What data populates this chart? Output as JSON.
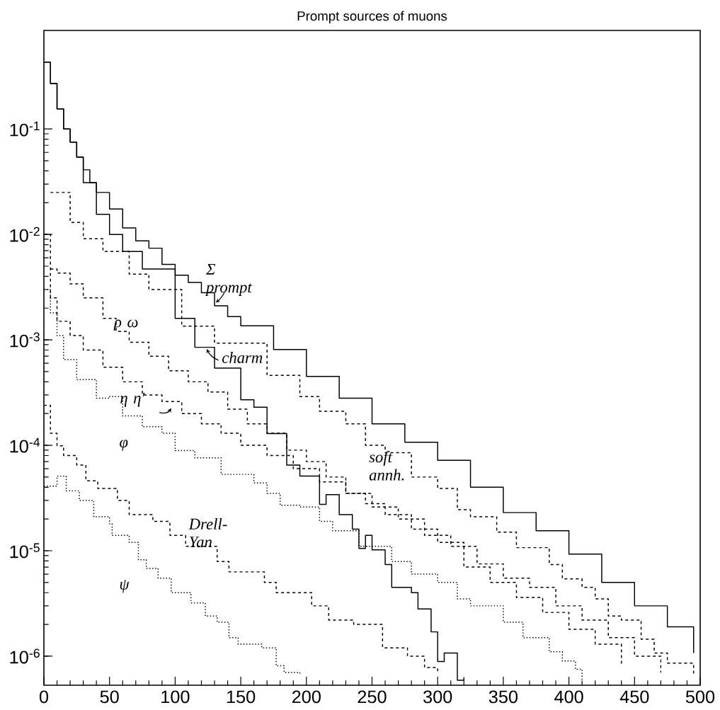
{
  "chart_data": {
    "type": "step",
    "title": "Prompt sources of muons",
    "log": true,
    "xlim": [
      0,
      500
    ],
    "ylim": [
      5.3e-07,
      0.86
    ],
    "xticks": [
      0,
      50,
      100,
      150,
      200,
      250,
      300,
      350,
      400,
      450,
      500
    ],
    "yticks": [
      {
        "value": 1e-06,
        "label": "10$^{-6}$"
      },
      {
        "value": 1e-05,
        "label": "10$^{-5}$"
      },
      {
        "value": 0.0001,
        "label": "10$^{-4}$"
      },
      {
        "value": 0.001,
        "label": "10$^{-3}$"
      },
      {
        "value": 0.01,
        "label": "10$^{-2}$"
      },
      {
        "value": 0.1,
        "label": "10$^{-1}$"
      }
    ],
    "series": [
      {
        "name": "Σ prompt",
        "color": "#000000",
        "line_style": "solid",
        "x": [
          0,
          5,
          10,
          15,
          20,
          25,
          30,
          35,
          40,
          50,
          60,
          70,
          80,
          90,
          100,
          110,
          120,
          130,
          140,
          150,
          175,
          200,
          225,
          250,
          275,
          300,
          325,
          350,
          375,
          400,
          425,
          450,
          475,
          495
        ],
        "values": [
          0.43,
          0.27,
          0.155,
          0.1,
          0.075,
          0.054,
          0.041,
          0.031,
          0.025,
          0.0174,
          0.0115,
          0.0087,
          0.0074,
          0.0052,
          0.0041,
          0.0035,
          0.0028,
          0.0021,
          0.00166,
          0.00136,
          0.00081,
          0.00045,
          0.00028,
          0.00016,
          0.000107,
          7.2e-05,
          4e-05,
          2.3e-05,
          1.55e-05,
          9.3e-06,
          5e-06,
          3e-06,
          1.9e-06,
          1.07e-06
        ]
      },
      {
        "name": "charm",
        "color": "#000000",
        "line_style": "solid",
        "x": [
          0,
          5,
          10,
          15,
          20,
          25,
          30,
          40,
          50,
          60,
          75,
          100,
          115,
          130,
          150,
          160,
          170,
          185,
          195,
          210,
          215,
          225,
          235,
          240,
          245,
          250,
          260,
          265,
          280,
          285,
          295,
          300,
          305,
          315,
          320
        ],
        "values": [
          0.43,
          0.27,
          0.155,
          0.1,
          0.075,
          0.054,
          0.031,
          0.0155,
          0.01,
          0.0069,
          0.0047,
          0.0016,
          0.00085,
          0.00054,
          0.00027,
          0.00023,
          0.000129,
          6.5e-05,
          5.1e-05,
          2.75e-05,
          3.4e-05,
          2.2e-05,
          1.6e-05,
          1.05e-05,
          1.4e-05,
          1.02e-05,
          7.4e-06,
          4.5e-06,
          4e-06,
          2.8e-06,
          1.7e-06,
          8.9e-07,
          1.07e-06,
          5.9e-07,
          6.3e-07
        ]
      },
      {
        "name": "soft annh.",
        "color": "#000000",
        "line_style": "dashed",
        "x": [
          5,
          20,
          30,
          45,
          65,
          80,
          105,
          130,
          170,
          195,
          210,
          230,
          245,
          260,
          280,
          300,
          315,
          325,
          345,
          360,
          385,
          395,
          410,
          420,
          430,
          440,
          455,
          465,
          475,
          495
        ],
        "values": [
          0.025,
          0.013,
          0.0091,
          0.0069,
          0.0042,
          0.003,
          0.00135,
          0.00093,
          0.00046,
          0.00029,
          0.00021,
          0.00016,
          0.0001,
          8.5e-05,
          5e-05,
          3.9e-05,
          2.45e-05,
          2.1e-05,
          1.5e-05,
          1.07e-05,
          7.4e-06,
          5.4e-06,
          4.5e-06,
          3.5e-06,
          2.4e-06,
          2.2e-06,
          1.45e-06,
          1.07e-06,
          8.6e-07,
          6.7e-07
        ]
      },
      {
        "name": "ρ ω",
        "color": "#000000",
        "line_style": "dashed",
        "x": [
          5,
          10,
          20,
          30,
          45,
          55,
          65,
          80,
          95,
          110,
          125,
          140,
          155,
          170,
          185,
          200,
          215,
          230,
          245,
          260,
          280,
          300,
          320,
          340,
          360,
          380,
          400,
          420,
          440
        ],
        "values": [
          0.0047,
          0.0043,
          0.0034,
          0.0025,
          0.0016,
          0.0012,
          0.00095,
          0.0007,
          0.00051,
          0.0004,
          0.00032,
          0.00022,
          0.00016,
          0.00013,
          9e-05,
          7e-05,
          5e-05,
          3.5e-05,
          2.8e-05,
          2.2e-05,
          1.6e-05,
          1.2e-05,
          7e-06,
          5e-06,
          3.6e-06,
          2.6e-06,
          1.8e-06,
          1.3e-06,
          8e-07
        ]
      },
      {
        "name": "η η'",
        "color": "#000000",
        "line_style": "dashed",
        "x": [
          0,
          5,
          10,
          20,
          30,
          45,
          60,
          75,
          90,
          105,
          120,
          135,
          150,
          170,
          190,
          210,
          230,
          250,
          270,
          290,
          310,
          330,
          350,
          370,
          390,
          410,
          430,
          450,
          470
        ],
        "values": [
          0.01,
          0.0025,
          0.0015,
          0.0011,
          0.0008,
          0.00055,
          0.0004,
          0.0003,
          0.00026,
          0.0002,
          0.00016,
          0.00013,
          0.0001,
          8e-05,
          6e-05,
          4.5e-05,
          3.5e-05,
          2.6e-05,
          2e-05,
          1.4e-05,
          1.1e-05,
          7.5e-06,
          5.5e-06,
          4.5e-06,
          3e-06,
          2.2e-06,
          1.5e-06,
          1e-06,
          7e-07
        ]
      },
      {
        "name": "φ",
        "color": "#000000",
        "line_style": "dotted",
        "x": [
          0,
          5,
          10,
          15,
          25,
          40,
          50,
          60,
          75,
          90,
          100,
          115,
          135,
          160,
          170,
          180,
          195,
          210,
          220,
          240,
          265,
          280,
          300,
          315,
          325,
          350,
          365,
          385,
          395,
          405,
          410
        ],
        "values": [
          0.003,
          0.0018,
          0.0011,
          0.00065,
          0.00042,
          0.00028,
          0.00029,
          0.00019,
          0.00015,
          0.00013,
          8.9e-05,
          7.6e-05,
          5.3e-05,
          4.4e-05,
          3.5e-05,
          2.7e-05,
          2.6e-05,
          1.9e-05,
          1.55e-05,
          1.1e-05,
          7.9e-06,
          6e-06,
          5e-06,
          3.5e-06,
          3e-06,
          2.1e-06,
          1.5e-06,
          1.1e-06,
          9e-07,
          7.5e-07,
          6e-07
        ]
      },
      {
        "name": "Drell-Yan",
        "color": "#000000",
        "line_style": "dashed",
        "x": [
          0,
          5,
          10,
          15,
          25,
          32,
          41,
          56,
          65,
          83,
          96,
          108,
          132,
          141,
          168,
          177,
          204,
          217,
          236,
          258,
          277,
          290,
          300
        ],
        "values": [
          0.00024,
          0.00013,
          9.9e-05,
          8e-05,
          6.5e-05,
          4.6e-05,
          3.9e-05,
          3e-05,
          2.2e-05,
          1.9e-05,
          1.4e-05,
          1.1e-05,
          7.9e-06,
          6.3e-06,
          5e-06,
          4e-06,
          3e-06,
          2.2e-06,
          2e-06,
          1.2e-06,
          1e-06,
          7.8e-07,
          6.8e-07
        ]
      },
      {
        "name": "ψ",
        "color": "#000000",
        "line_style": "dotted",
        "x": [
          0,
          10,
          17,
          27,
          38,
          50,
          52,
          65,
          72,
          78,
          87,
          97,
          112,
          123,
          132,
          141,
          148,
          166,
          177,
          183,
          195
        ],
        "values": [
          4.1e-05,
          5.1e-05,
          3.7e-05,
          3e-05,
          2.1e-05,
          1.8e-05,
          1.4e-05,
          1.2e-05,
          8.2e-06,
          6.8e-06,
          5.5e-06,
          4e-06,
          3.2e-06,
          2.4e-06,
          2.1e-06,
          1.5e-06,
          1.3e-06,
          1.2e-06,
          8.1e-07,
          7e-07,
          6.8e-07
        ]
      }
    ]
  }
}
